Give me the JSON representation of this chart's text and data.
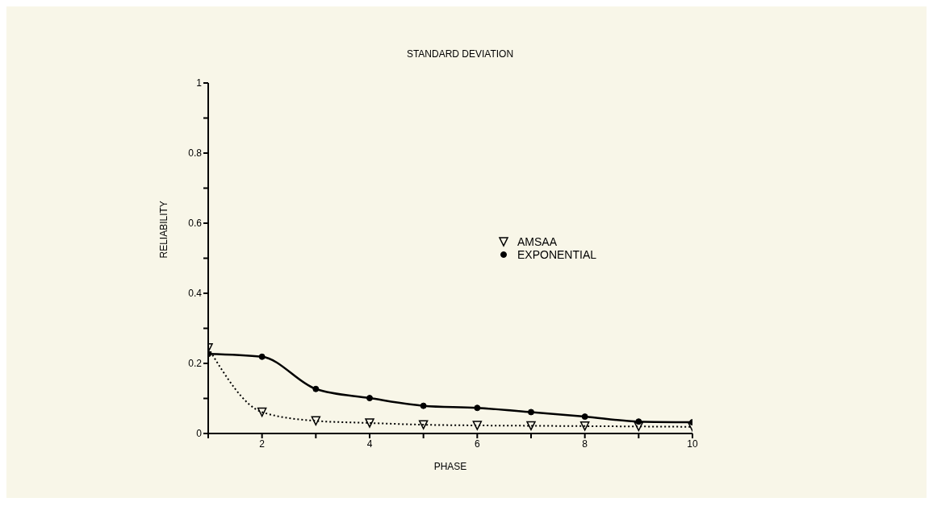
{
  "chart_data": {
    "type": "line",
    "title": "STANDARD DEVIATION",
    "xlabel": "PHASE",
    "ylabel": "RELIABILITY",
    "x": [
      1,
      2,
      3,
      4,
      5,
      6,
      7,
      8,
      9,
      10
    ],
    "series": [
      {
        "name": "AMSAA",
        "color": "#000000",
        "marker": "triangle",
        "line_style": "dotted",
        "values": [
          0.244,
          0.061,
          0.036,
          0.03,
          0.025,
          0.023,
          0.022,
          0.021,
          0.02,
          0.019
        ]
      },
      {
        "name": "EXPONENTIAL",
        "color": "#000000",
        "marker": "circle",
        "line_style": "solid",
        "values": [
          0.227,
          0.219,
          0.127,
          0.101,
          0.079,
          0.073,
          0.061,
          0.048,
          0.034,
          0.032
        ]
      }
    ],
    "xlim": [
      1,
      10
    ],
    "xticks": [
      {
        "value": 1,
        "label": null
      },
      2,
      {
        "value": 3,
        "label": null
      },
      4,
      {
        "value": 5,
        "label": null
      },
      6,
      {
        "value": 7,
        "label": null
      },
      8,
      {
        "value": 9,
        "label": null
      },
      10
    ],
    "ylim": [
      0,
      1
    ],
    "yticks": [
      0,
      {
        "value": 0.1,
        "label": null
      },
      0.2,
      {
        "value": 0.3,
        "label": null
      },
      0.4,
      {
        "value": 0.5,
        "label": null
      },
      0.6,
      {
        "value": 0.7,
        "label": null
      },
      0.8,
      {
        "value": 0.9,
        "label": null
      },
      1.0
    ],
    "grid": false,
    "legend": "center"
  }
}
